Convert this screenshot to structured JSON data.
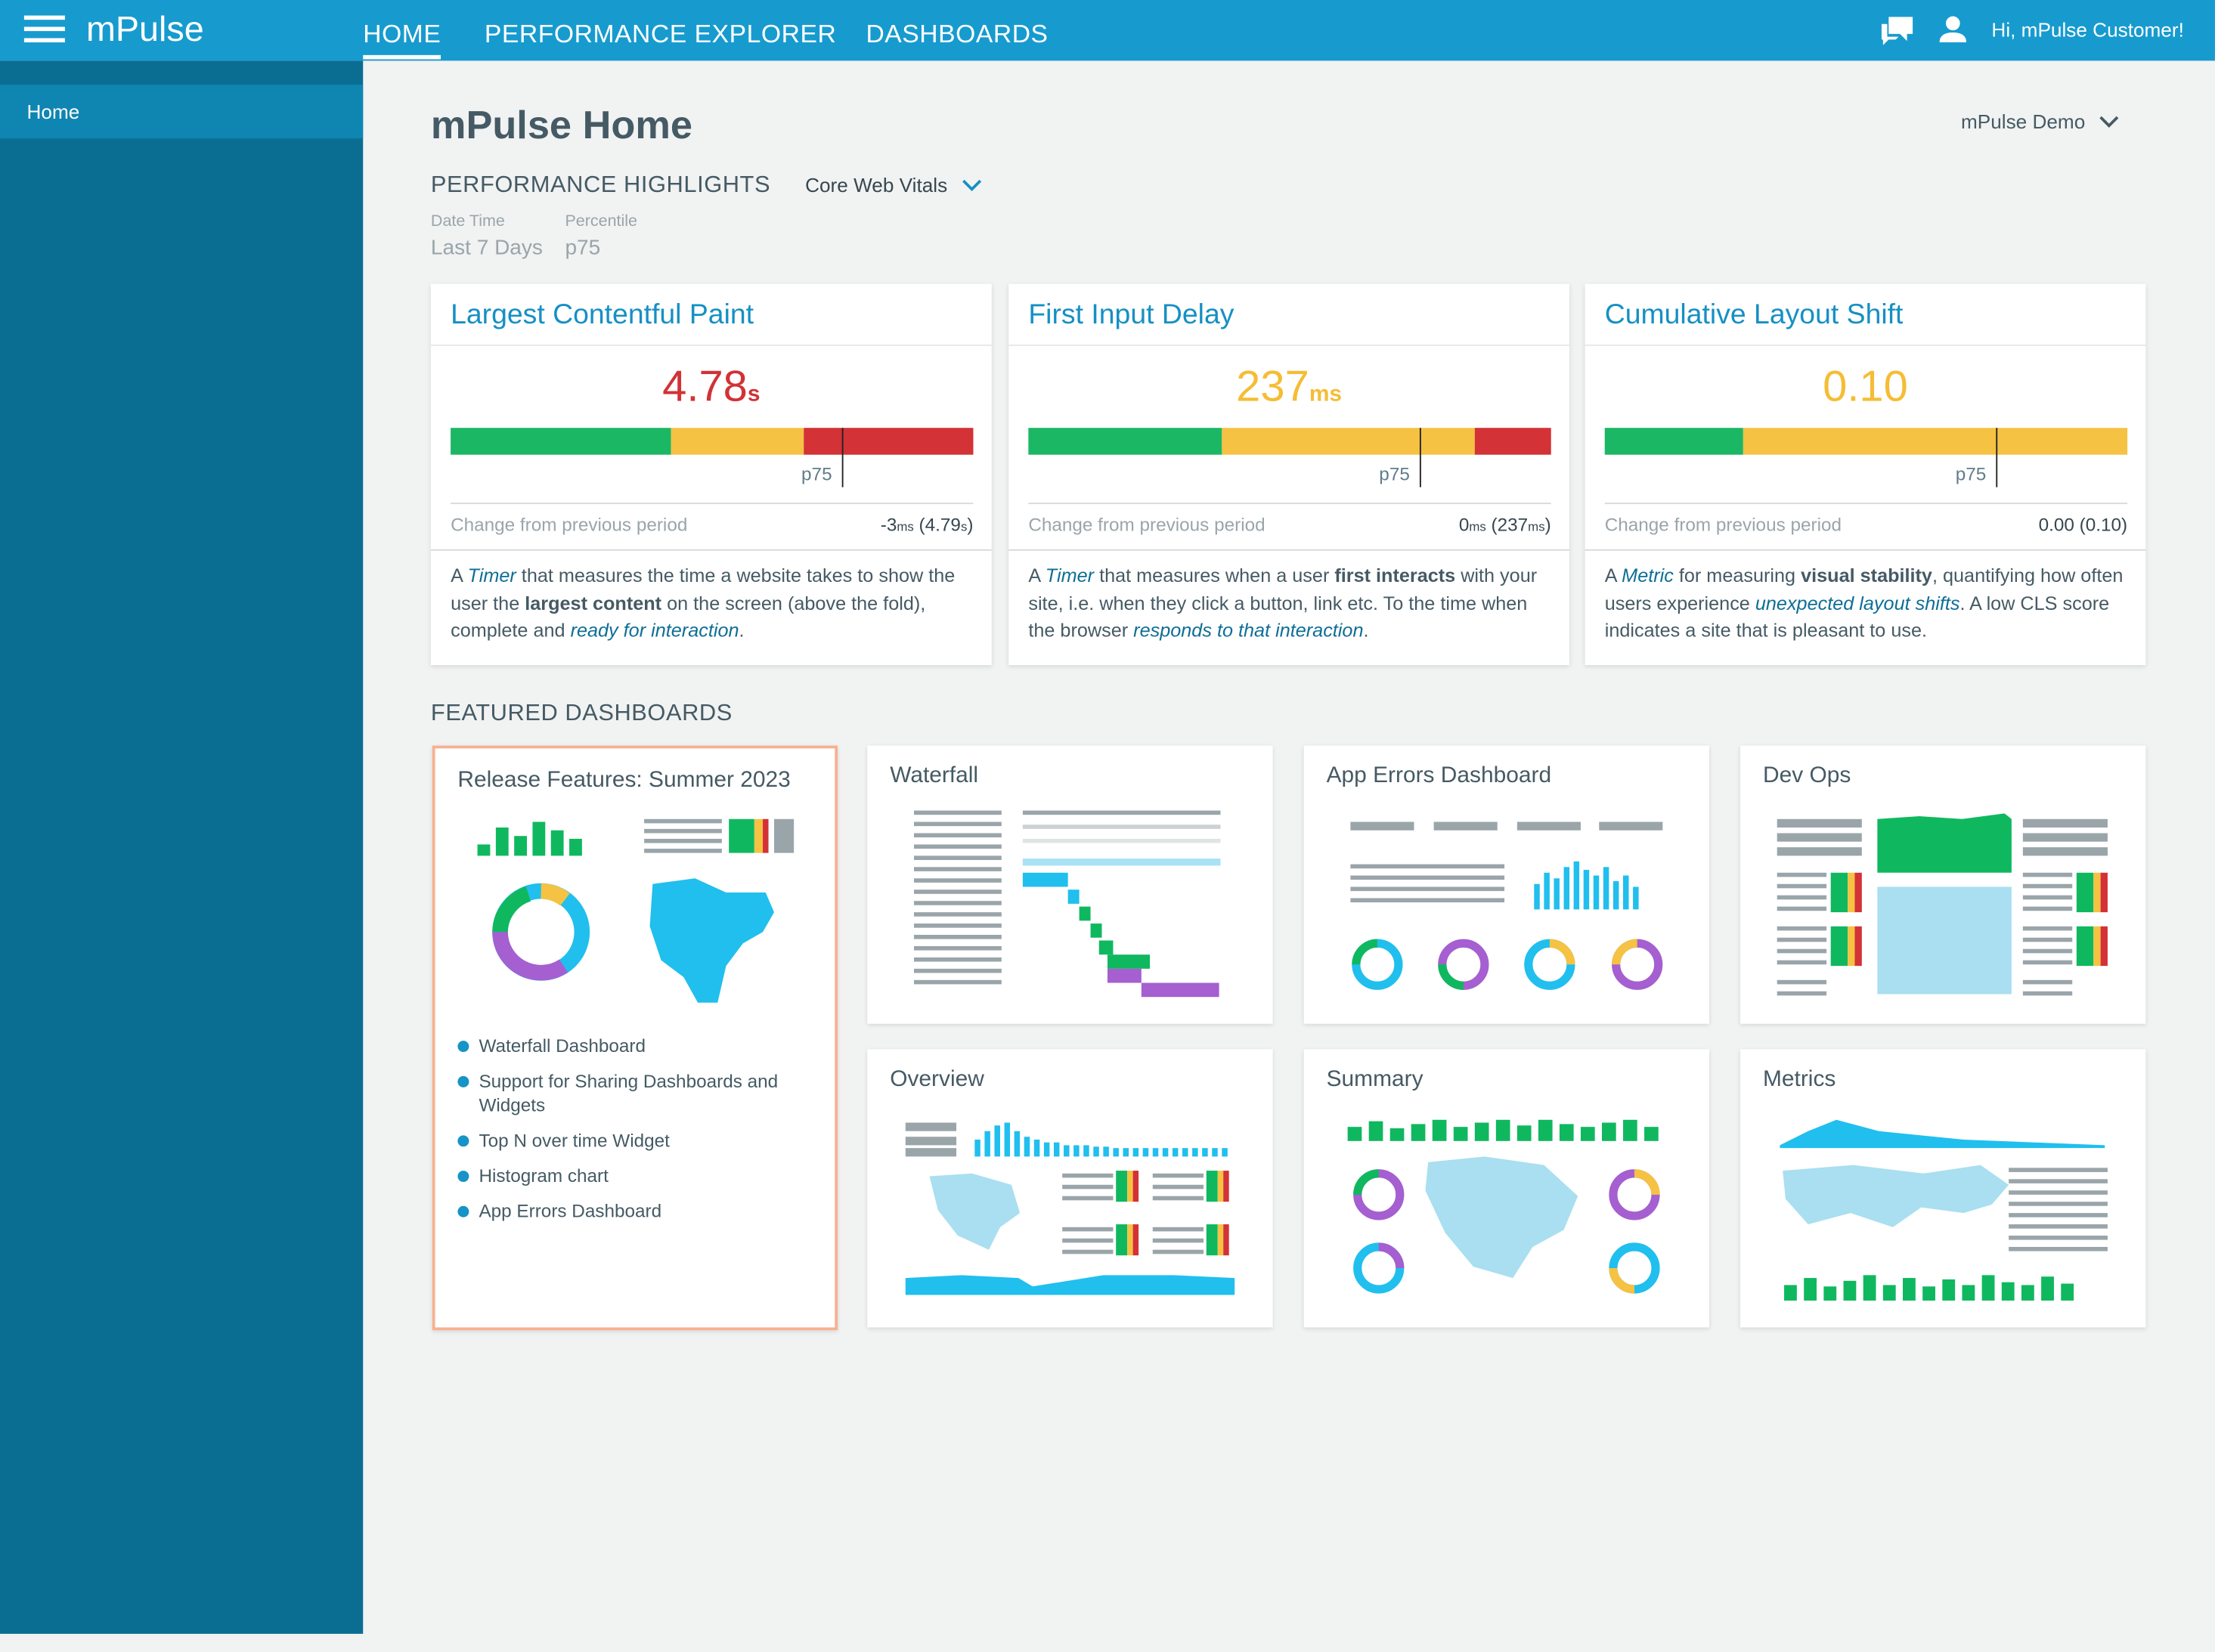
{
  "header": {
    "brand": "mPulse",
    "nav": [
      "HOME",
      "PERFORMANCE EXPLORER",
      "DASHBOARDS"
    ],
    "user": "Hi, mPulse Customer!"
  },
  "sidebar": {
    "items": [
      "Home"
    ]
  },
  "page": {
    "title": "mPulse Home",
    "account": "mPulse Demo"
  },
  "highlights": {
    "title": "PERFORMANCE HIGHLIGHTS",
    "selector": "Core Web Vitals",
    "filters": [
      {
        "label": "Date Time",
        "value": "Last 7 Days"
      },
      {
        "label": "Percentile",
        "value": "p75"
      }
    ],
    "metrics": [
      {
        "title": "Largest Contentful Paint",
        "value": "4.78",
        "unit": "s",
        "status": "poor",
        "marker": "p75",
        "change_label": "Change from previous period",
        "change": [
          {
            "text": "-3"
          },
          {
            "text": "ms",
            "style": "unit"
          },
          {
            "text": " (4.79"
          },
          {
            "text": "s",
            "style": "unit"
          },
          {
            "text": ")"
          }
        ],
        "description": [
          {
            "text": "A "
          },
          {
            "text": "Timer",
            "style": "em"
          },
          {
            "text": " that measures the time a website takes to show the user the "
          },
          {
            "text": "largest content",
            "style": "strong"
          },
          {
            "text": " on the screen (above the fold), complete and "
          },
          {
            "text": "ready for interaction",
            "style": "em"
          },
          {
            "text": "."
          }
        ]
      },
      {
        "title": "First Input Delay",
        "value": "237",
        "unit": "ms",
        "status": "needs-improvement",
        "marker": "p75",
        "change_label": "Change from previous period",
        "change": [
          {
            "text": "0"
          },
          {
            "text": "ms",
            "style": "unit"
          },
          {
            "text": " (237"
          },
          {
            "text": "ms",
            "style": "unit"
          },
          {
            "text": ")"
          }
        ],
        "description": [
          {
            "text": "A "
          },
          {
            "text": "Timer",
            "style": "em"
          },
          {
            "text": " that measures when a user "
          },
          {
            "text": "first interacts",
            "style": "strong"
          },
          {
            "text": " with your site, i.e. when they click a button, link etc. To the time when the browser "
          },
          {
            "text": "responds to that interaction",
            "style": "em"
          },
          {
            "text": "."
          }
        ]
      },
      {
        "title": "Cumulative Layout Shift",
        "value": "0.10",
        "unit": null,
        "status": "needs-improvement",
        "marker": "p75",
        "change_label": "Change from previous period",
        "change": [
          {
            "text": "0.00 (0.10)"
          }
        ],
        "description": [
          {
            "text": "A "
          },
          {
            "text": "Metric",
            "style": "em"
          },
          {
            "text": " for measuring "
          },
          {
            "text": "visual stability",
            "style": "strong"
          },
          {
            "text": ", quantifying how often users experience "
          },
          {
            "text": "unexpected layout shifts",
            "style": "em"
          },
          {
            "text": ". A low CLS score indicates a site that is pleasant to use."
          }
        ]
      }
    ]
  },
  "featured": {
    "title": "FEATURED DASHBOARDS",
    "release": {
      "title": "Release Features: Summer 2023",
      "items": [
        "Waterfall Dashboard",
        "Support for Sharing Dashboards and Widgets",
        "Top N over time Widget",
        "Histogram chart",
        "App Errors Dashboard"
      ]
    },
    "dashboards": [
      "Waterfall",
      "App Errors Dashboard",
      "Dev Ops",
      "Overview",
      "Summary",
      "Metrics"
    ]
  }
}
